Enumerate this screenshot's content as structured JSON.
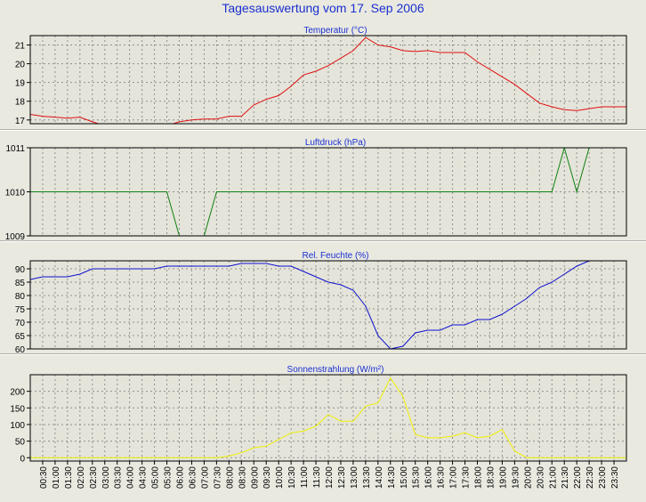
{
  "title": "Tagesauswertung vom 17. Sep 2006",
  "colors": {
    "background": "#e9e9e0",
    "title": "#1a2fd0",
    "panel_title": "#1a2fd0",
    "temperature": "#e01010",
    "pressure": "#108010",
    "humidity": "#1010d0",
    "radiation": "#f0f000"
  },
  "x_axis": {
    "labels": [
      "00:30",
      "01:00",
      "01:30",
      "02:00",
      "02:30",
      "03:00",
      "03:30",
      "04:00",
      "04:30",
      "05:00",
      "05:30",
      "06:00",
      "06:30",
      "07:00",
      "07:30",
      "08:00",
      "08:30",
      "09:00",
      "09:30",
      "10:00",
      "10:30",
      "11:00",
      "11:30",
      "12:00",
      "12:30",
      "13:00",
      "13:30",
      "14:00",
      "14:30",
      "15:00",
      "15:30",
      "16:00",
      "16:30",
      "17:00",
      "17:30",
      "18:00",
      "18:30",
      "19:00",
      "19:30",
      "20:00",
      "20:30",
      "21:00",
      "21:30",
      "22:00",
      "22:30",
      "23:00",
      "23:30"
    ],
    "range": [
      0,
      24
    ]
  },
  "chart_data": [
    {
      "type": "line",
      "title": "Temperatur (°C)",
      "ylim": [
        16.8,
        21.5
      ],
      "yticks": [
        17,
        18,
        19,
        20,
        21
      ],
      "grid": true,
      "series": [
        {
          "x": [
            0,
            0.5,
            1,
            1.5,
            2,
            2.5,
            3,
            3.5,
            4,
            4.5,
            5,
            5.5,
            6,
            6.5,
            7,
            7.5,
            8,
            8.5,
            9,
            9.5,
            10,
            10.5,
            11,
            11.5,
            12,
            12.5,
            13,
            13.5,
            14,
            14.5,
            15,
            15.5,
            16,
            16.5,
            17,
            17.5,
            18,
            18.5,
            19,
            19.5,
            20,
            20.5,
            21,
            21.5,
            22,
            22.5,
            23,
            23.5,
            24
          ],
          "values": [
            17.3,
            17.2,
            17.15,
            17.1,
            17.15,
            16.9,
            16.7,
            16.6,
            16.6,
            16.6,
            16.6,
            16.7,
            16.9,
            17.0,
            17.05,
            17.05,
            17.2,
            17.2,
            17.8,
            18.1,
            18.3,
            18.8,
            19.4,
            19.6,
            19.9,
            20.3,
            20.7,
            21.4,
            21.0,
            20.9,
            20.7,
            20.65,
            20.7,
            20.6,
            20.6,
            20.6,
            20.1,
            19.7,
            19.3,
            18.9,
            18.4,
            17.9,
            17.7,
            17.55,
            17.5,
            17.6,
            17.7,
            17.7,
            17.7
          ]
        }
      ]
    },
    {
      "type": "line",
      "title": "Luftdruck (hPa)",
      "ylim": [
        1009,
        1011
      ],
      "yticks": [
        1009,
        1010,
        1011
      ],
      "grid": true,
      "series": [
        {
          "x": [
            0,
            5.5,
            6,
            6.5,
            7,
            7.5,
            8,
            21,
            21.5,
            22,
            22.5
          ],
          "values": [
            1010,
            1010,
            1009,
            1009,
            1009,
            1010,
            1010,
            1010,
            1011,
            1010,
            1011
          ]
        }
      ]
    },
    {
      "type": "line",
      "title": "Rel. Feuchte (%)",
      "ylim": [
        60,
        93
      ],
      "yticks": [
        60,
        65,
        70,
        75,
        80,
        85,
        90
      ],
      "grid": true,
      "series": [
        {
          "x": [
            0,
            0.5,
            1,
            1.5,
            2,
            2.5,
            3,
            3.5,
            4,
            4.5,
            5,
            5.5,
            6,
            6.5,
            7,
            7.5,
            8,
            8.5,
            9,
            9.5,
            10,
            10.5,
            11,
            11.5,
            12,
            12.5,
            13,
            13.5,
            14,
            14.5,
            15,
            15.5,
            16,
            16.5,
            17,
            17.5,
            18,
            18.5,
            19,
            19.5,
            20,
            20.5,
            21,
            21.5,
            22,
            22.5
          ],
          "values": [
            86,
            87,
            87,
            87,
            88,
            90,
            90,
            90,
            90,
            90,
            90,
            91,
            91,
            91,
            91,
            91,
            91,
            92,
            92,
            92,
            91,
            91,
            89,
            87,
            85,
            84,
            82,
            76,
            65,
            60,
            61,
            66,
            67,
            67,
            69,
            69,
            71,
            71,
            73,
            76,
            79,
            83,
            85,
            88,
            91,
            93
          ]
        }
      ]
    },
    {
      "type": "line",
      "title": "Sonnenstrahlung (W/m²)",
      "ylim": [
        -10,
        250
      ],
      "yticks": [
        0,
        50,
        100,
        150,
        200
      ],
      "grid": true,
      "series": [
        {
          "x": [
            0,
            0.5,
            1,
            1.5,
            2,
            2.5,
            3,
            3.5,
            4,
            4.5,
            5,
            5.5,
            6,
            6.5,
            7,
            7.5,
            8,
            8.5,
            9,
            9.5,
            10,
            10.5,
            11,
            11.5,
            12,
            12.5,
            13,
            13.5,
            14,
            14.5,
            15,
            15.5,
            16,
            16.5,
            17,
            17.5,
            18,
            18.5,
            19,
            19.5,
            20,
            20.5,
            21,
            21.5,
            22,
            22.5,
            23,
            23.5,
            24
          ],
          "values": [
            0,
            0,
            0,
            0,
            0,
            0,
            0,
            0,
            0,
            0,
            0,
            0,
            0,
            0,
            0,
            0,
            5,
            15,
            30,
            35,
            55,
            75,
            80,
            95,
            130,
            110,
            110,
            155,
            165,
            240,
            185,
            70,
            60,
            60,
            65,
            75,
            60,
            65,
            85,
            20,
            0,
            0,
            0,
            0,
            0,
            0,
            0,
            0,
            0
          ]
        }
      ]
    }
  ]
}
